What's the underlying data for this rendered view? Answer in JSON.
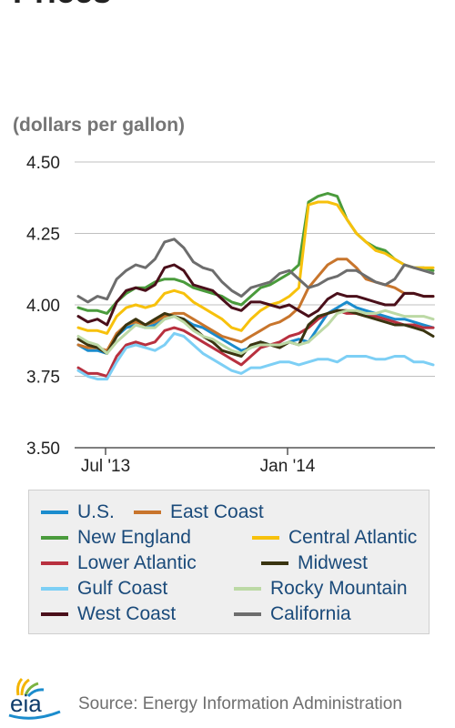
{
  "header": {
    "title_fragment": "Prices",
    "unit": "(dollars per gallon)"
  },
  "chart_data": {
    "type": "line",
    "ylim": [
      3.5,
      4.5
    ],
    "yticks": [
      "4.50",
      "4.25",
      "4.00",
      "3.75",
      "3.50"
    ],
    "xticks": [
      "Jul '13",
      "Jan '14"
    ],
    "grid": true,
    "legend_position": "bottom",
    "series": [
      {
        "name": "U.S.",
        "color": "#1b8ccd",
        "values": [
          3.86,
          3.84,
          3.84,
          3.83,
          3.89,
          3.92,
          3.93,
          3.92,
          3.93,
          3.95,
          3.96,
          3.95,
          3.93,
          3.92,
          3.9,
          3.88,
          3.86,
          3.84,
          3.85,
          3.87,
          3.86,
          3.86,
          3.87,
          3.88,
          3.87,
          3.92,
          3.97,
          3.99,
          4.01,
          3.99,
          3.98,
          3.97,
          3.96,
          3.95,
          3.95,
          3.94,
          3.93,
          3.92
        ]
      },
      {
        "name": "East Coast",
        "color": "#c8752c",
        "values": [
          3.86,
          3.85,
          3.85,
          3.84,
          3.9,
          3.93,
          3.94,
          3.93,
          3.94,
          3.96,
          3.97,
          3.97,
          3.95,
          3.93,
          3.91,
          3.89,
          3.88,
          3.87,
          3.89,
          3.91,
          3.93,
          3.94,
          3.96,
          3.99,
          4.06,
          4.1,
          4.14,
          4.16,
          4.16,
          4.13,
          4.09,
          4.08,
          4.07,
          4.06,
          4.04,
          4.04,
          4.03,
          4.03
        ]
      },
      {
        "name": "New England",
        "color": "#4a9b3c",
        "values": [
          3.99,
          3.98,
          3.98,
          3.97,
          4.01,
          4.04,
          4.06,
          4.06,
          4.08,
          4.09,
          4.09,
          4.08,
          4.06,
          4.05,
          4.04,
          4.03,
          4.01,
          4.0,
          4.03,
          4.06,
          4.07,
          4.09,
          4.11,
          4.14,
          4.36,
          4.38,
          4.39,
          4.38,
          4.3,
          4.25,
          4.22,
          4.2,
          4.19,
          4.16,
          4.14,
          4.13,
          4.13,
          4.12
        ]
      },
      {
        "name": "Central Atlantic",
        "color": "#f7c10c",
        "values": [
          3.92,
          3.91,
          3.91,
          3.9,
          3.96,
          3.99,
          4.0,
          3.99,
          4.0,
          4.04,
          4.05,
          4.04,
          4.01,
          3.99,
          3.97,
          3.95,
          3.92,
          3.91,
          3.95,
          3.98,
          4.0,
          4.01,
          4.03,
          4.06,
          4.35,
          4.36,
          4.36,
          4.35,
          4.3,
          4.25,
          4.22,
          4.19,
          4.18,
          4.16,
          4.14,
          4.13,
          4.13,
          4.13
        ]
      },
      {
        "name": "Lower Atlantic",
        "color": "#b8303f",
        "values": [
          3.78,
          3.76,
          3.76,
          3.75,
          3.82,
          3.86,
          3.87,
          3.86,
          3.87,
          3.91,
          3.92,
          3.91,
          3.89,
          3.87,
          3.85,
          3.83,
          3.81,
          3.79,
          3.82,
          3.85,
          3.86,
          3.87,
          3.89,
          3.9,
          3.92,
          3.95,
          3.97,
          3.98,
          3.97,
          3.97,
          3.96,
          3.96,
          3.95,
          3.94,
          3.93,
          3.93,
          3.92,
          3.92
        ]
      },
      {
        "name": "Midwest",
        "color": "#3a3410",
        "values": [
          3.88,
          3.86,
          3.85,
          3.83,
          3.89,
          3.93,
          3.95,
          3.93,
          3.95,
          3.97,
          3.96,
          3.95,
          3.92,
          3.89,
          3.87,
          3.84,
          3.83,
          3.82,
          3.86,
          3.87,
          3.86,
          3.85,
          3.87,
          3.86,
          3.93,
          3.96,
          3.97,
          3.98,
          3.98,
          3.97,
          3.96,
          3.95,
          3.94,
          3.93,
          3.93,
          3.92,
          3.91,
          3.89
        ]
      },
      {
        "name": "Gulf Coast",
        "color": "#7dcff5",
        "values": [
          3.77,
          3.75,
          3.74,
          3.74,
          3.8,
          3.85,
          3.86,
          3.85,
          3.84,
          3.86,
          3.9,
          3.89,
          3.86,
          3.83,
          3.81,
          3.79,
          3.77,
          3.76,
          3.78,
          3.78,
          3.79,
          3.8,
          3.8,
          3.79,
          3.8,
          3.81,
          3.81,
          3.8,
          3.82,
          3.82,
          3.82,
          3.81,
          3.81,
          3.82,
          3.82,
          3.8,
          3.8,
          3.79
        ]
      },
      {
        "name": "Rocky Mountain",
        "color": "#bcd9a5",
        "values": [
          3.89,
          3.87,
          3.86,
          3.83,
          3.87,
          3.9,
          3.93,
          3.92,
          3.92,
          3.95,
          3.96,
          3.94,
          3.91,
          3.89,
          3.88,
          3.86,
          3.84,
          3.83,
          3.85,
          3.86,
          3.86,
          3.86,
          3.87,
          3.86,
          3.87,
          3.9,
          3.93,
          3.97,
          3.98,
          3.98,
          3.97,
          3.97,
          3.98,
          3.97,
          3.96,
          3.96,
          3.96,
          3.95
        ]
      },
      {
        "name": "West Coast",
        "color": "#4a0f1a",
        "values": [
          3.96,
          3.94,
          3.95,
          3.93,
          4.01,
          4.05,
          4.06,
          4.05,
          4.07,
          4.13,
          4.14,
          4.12,
          4.07,
          4.06,
          4.05,
          4.02,
          3.99,
          3.98,
          4.01,
          4.01,
          4.0,
          3.99,
          4.0,
          3.98,
          3.96,
          3.98,
          4.02,
          4.04,
          4.03,
          4.03,
          4.02,
          4.01,
          4.0,
          4.0,
          4.04,
          4.04,
          4.03,
          4.03
        ]
      },
      {
        "name": "California",
        "color": "#6d6d6d",
        "values": [
          4.03,
          4.01,
          4.03,
          4.02,
          4.09,
          4.12,
          4.14,
          4.13,
          4.16,
          4.22,
          4.23,
          4.2,
          4.15,
          4.13,
          4.12,
          4.08,
          4.05,
          4.03,
          4.06,
          4.07,
          4.08,
          4.11,
          4.12,
          4.09,
          4.06,
          4.07,
          4.09,
          4.1,
          4.12,
          4.12,
          4.1,
          4.08,
          4.07,
          4.09,
          4.14,
          4.13,
          4.12,
          4.11
        ]
      }
    ]
  },
  "footer": {
    "logo_text": "eia",
    "source": "Source: Energy Information Administration"
  }
}
